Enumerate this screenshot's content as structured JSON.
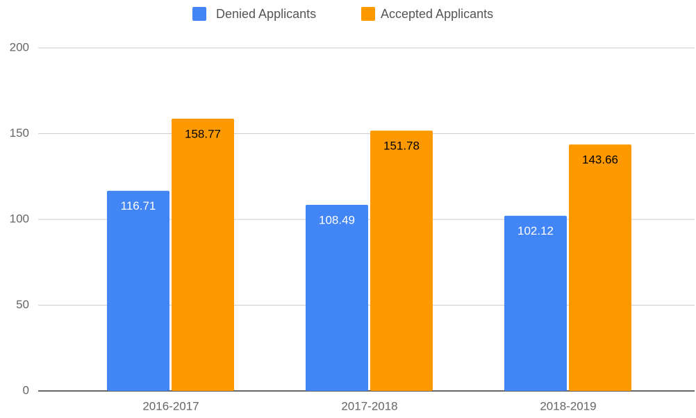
{
  "chart_data": {
    "type": "bar",
    "categories": [
      "2016-2017",
      "2017-2018",
      "2018-2019"
    ],
    "series": [
      {
        "name": "Denied Applicants",
        "color": "#4285f4",
        "label_color": "#ffffff",
        "values": [
          116.71,
          108.49,
          102.12
        ]
      },
      {
        "name": "Accepted Applicants",
        "color": "#ff9900",
        "label_color": "#000000",
        "values": [
          158.77,
          151.78,
          143.66
        ]
      }
    ],
    "ylim": [
      0,
      200
    ],
    "yticks": [
      0,
      50,
      100,
      150,
      200
    ],
    "grid": true,
    "legend": "top"
  }
}
